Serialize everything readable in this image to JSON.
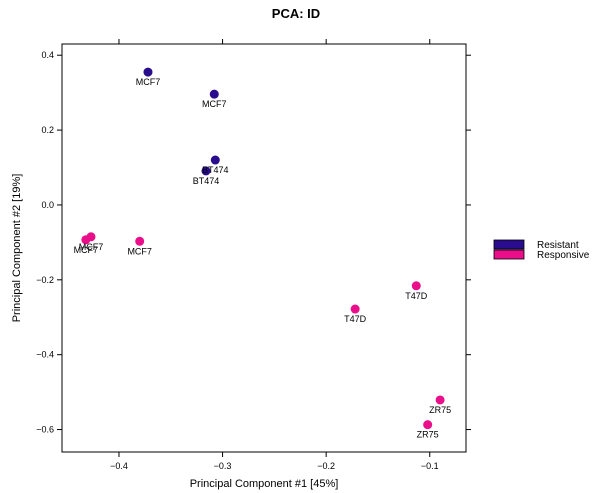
{
  "chart_data": {
    "type": "scatter",
    "title": "PCA: ID",
    "xlabel": "Principal Component #1 [45%]",
    "ylabel": "Principal Component #2 [19%]",
    "xlim": [
      -0.455,
      -0.065
    ],
    "ylim": [
      -0.66,
      0.43
    ],
    "xticks": [
      -0.4,
      -0.3,
      -0.2,
      -0.1
    ],
    "yticks": [
      -0.6,
      -0.4,
      -0.2,
      0.0,
      0.2,
      0.4
    ],
    "xtick_labels": [
      "−0.4",
      "−0.3",
      "−0.2",
      "−0.1"
    ],
    "ytick_labels": [
      "−0.6",
      "−0.4",
      "−0.2",
      "0.0",
      "0.2",
      "0.4"
    ],
    "legend_position": "right",
    "series": [
      {
        "name": "Resistant",
        "color": "#2a0d8e",
        "points": [
          {
            "x": -0.372,
            "y": 0.355,
            "label": "MCF7",
            "label_pos": "below"
          },
          {
            "x": -0.308,
            "y": 0.296,
            "label": "MCF7",
            "label_pos": "below"
          },
          {
            "x": -0.307,
            "y": 0.12,
            "label": "BT474",
            "label_pos": "below"
          },
          {
            "x": -0.316,
            "y": 0.091,
            "label": "BT474",
            "label_pos": "below"
          }
        ]
      },
      {
        "name": "Responsive",
        "color": "#ea0e8a",
        "points": [
          {
            "x": -0.432,
            "y": -0.093,
            "label": "MCF7",
            "label_pos": "below"
          },
          {
            "x": -0.427,
            "y": -0.085,
            "label": "MCF7",
            "label_pos": "below"
          },
          {
            "x": -0.38,
            "y": -0.097,
            "label": "MCF7",
            "label_pos": "below"
          },
          {
            "x": -0.113,
            "y": -0.216,
            "label": "T47D",
            "label_pos": "below"
          },
          {
            "x": -0.172,
            "y": -0.278,
            "label": "T47D",
            "label_pos": "below"
          },
          {
            "x": -0.09,
            "y": -0.521,
            "label": "ZR75",
            "label_pos": "below"
          },
          {
            "x": -0.102,
            "y": -0.587,
            "label": "ZR75",
            "label_pos": "below"
          }
        ]
      }
    ]
  }
}
